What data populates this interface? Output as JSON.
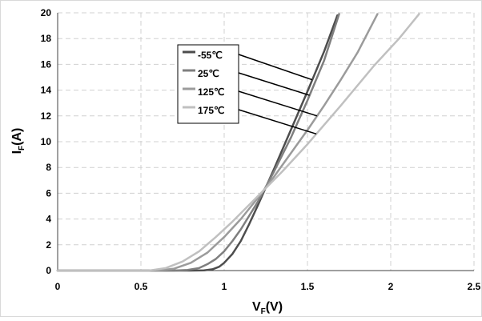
{
  "chart_data": {
    "type": "line",
    "xlabel": {
      "main": "V",
      "sub": "F",
      "unit": "(V)"
    },
    "ylabel": {
      "main": "I",
      "sub": "F",
      "unit": "(A)"
    },
    "xlim": [
      0,
      2.5
    ],
    "ylim": [
      0,
      20
    ],
    "x_ticks": [
      "0",
      "0.5",
      "1",
      "1.5",
      "2",
      "2.5"
    ],
    "y_ticks": [
      "0",
      "2",
      "4",
      "6",
      "8",
      "10",
      "12",
      "14",
      "16",
      "18",
      "20"
    ],
    "grid": true,
    "legend_position": "upper-center",
    "series": [
      {
        "name": "-55℃",
        "color": "#4d4d4d",
        "x": [
          0,
          0.8,
          0.88,
          0.93,
          0.97,
          1.0,
          1.05,
          1.1,
          1.15,
          1.2,
          1.3,
          1.4,
          1.5,
          1.6,
          1.68
        ],
        "y": [
          0,
          0,
          0.02,
          0.1,
          0.3,
          0.6,
          1.3,
          2.3,
          3.6,
          5.0,
          7.9,
          10.9,
          13.9,
          17.0,
          19.8
        ],
        "pointer_y": 14.8
      },
      {
        "name": "25℃",
        "color": "#7f7f7f",
        "x": [
          0,
          0.7,
          0.78,
          0.85,
          0.9,
          0.95,
          1.0,
          1.05,
          1.1,
          1.2,
          1.3,
          1.4,
          1.5,
          1.6,
          1.69
        ],
        "y": [
          0,
          0,
          0.05,
          0.2,
          0.5,
          0.9,
          1.5,
          2.3,
          3.2,
          5.3,
          7.7,
          10.3,
          13.2,
          16.3,
          19.9
        ],
        "pointer_y": 13.6
      },
      {
        "name": "125℃",
        "color": "#9b9b9b",
        "x": [
          0,
          0.6,
          0.7,
          0.8,
          0.9,
          1.0,
          1.1,
          1.2,
          1.3,
          1.4,
          1.5,
          1.6,
          1.7,
          1.8,
          1.92
        ],
        "y": [
          0,
          0,
          0.15,
          0.6,
          1.4,
          2.6,
          4.0,
          5.6,
          7.3,
          9.1,
          10.9,
          12.8,
          14.8,
          16.9,
          19.9
        ],
        "pointer_y": 12.0
      },
      {
        "name": "175℃",
        "color": "#c0c0c0",
        "x": [
          0,
          0.55,
          0.65,
          0.75,
          0.85,
          0.95,
          1.05,
          1.15,
          1.25,
          1.35,
          1.5,
          1.7,
          1.9,
          2.05,
          2.17
        ],
        "y": [
          0,
          0,
          0.2,
          0.7,
          1.5,
          2.6,
          3.8,
          5.1,
          6.4,
          7.7,
          9.8,
          12.8,
          15.9,
          18.0,
          19.9
        ],
        "pointer_y": 10.6
      }
    ]
  }
}
